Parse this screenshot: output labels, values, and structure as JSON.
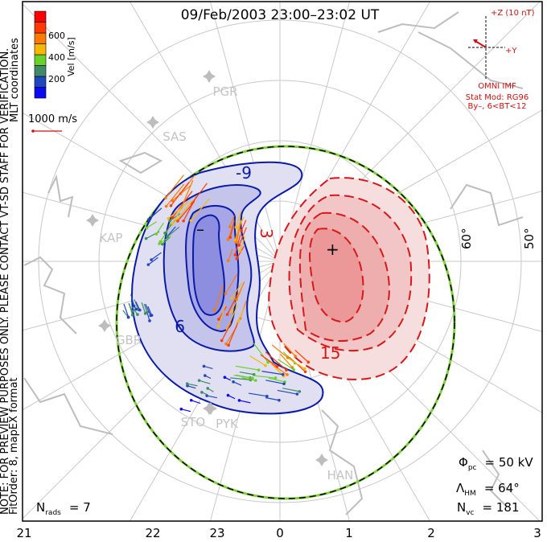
{
  "title": "09/Feb/2003 23:00–23:02 UT",
  "side_note": {
    "line1": "NOTE: FOR PREVIEW PURPOSES ONLY. PLEASE CONTACT VT-SD STAFF FOR VERIFICATION.",
    "line2": "FitOrder: 8, mapEX format",
    "coords": "MLT coordinates"
  },
  "colorbar": {
    "label": "Vel [m/s]",
    "ticks": [
      "200",
      "400",
      "600"
    ],
    "colors": [
      "#0a0af5",
      "#2245c0",
      "#3f8a6a",
      "#6ad12a",
      "#f8b800",
      "#ff7a00",
      "#ff3a00",
      "#ff0000"
    ]
  },
  "scale_vector": {
    "label": "1000 m/s",
    "color": "#d01010"
  },
  "imf": {
    "z_label": "+Z (10 nT)",
    "y_label": "+Y",
    "source": "OMNI IMF",
    "model": "Stat Mod: RG96",
    "bin": "By–, 6<BT<12",
    "color": "#d01010"
  },
  "latitude_labels": [
    "60°",
    "50°"
  ],
  "mlt_labels": [
    "21",
    "22",
    "23",
    "0",
    "1",
    "2",
    "3"
  ],
  "radars": [
    "PGR",
    "SAS",
    "KAP",
    "GBR",
    "STO",
    "PYK",
    "HAN"
  ],
  "contours": {
    "labels": [
      "-9",
      "9",
      "3",
      "15"
    ],
    "min_marker": "–",
    "max_marker": "+",
    "negative_color": "#0a1aa8",
    "positive_color": "#d81818"
  },
  "stats": {
    "phi_symbol": "Φ",
    "phi_sub": "pc",
    "phi_value": "= 50 kV",
    "lambda_symbol": "Λ",
    "lambda_sub": "HM",
    "lambda_value": "= 64°",
    "nvc_symbol": "N",
    "nvc_sub": "vc",
    "nvc_value": "= 181",
    "nrads_symbol": "N",
    "nrads_sub": "rads",
    "nrads_value": "= 7"
  }
}
